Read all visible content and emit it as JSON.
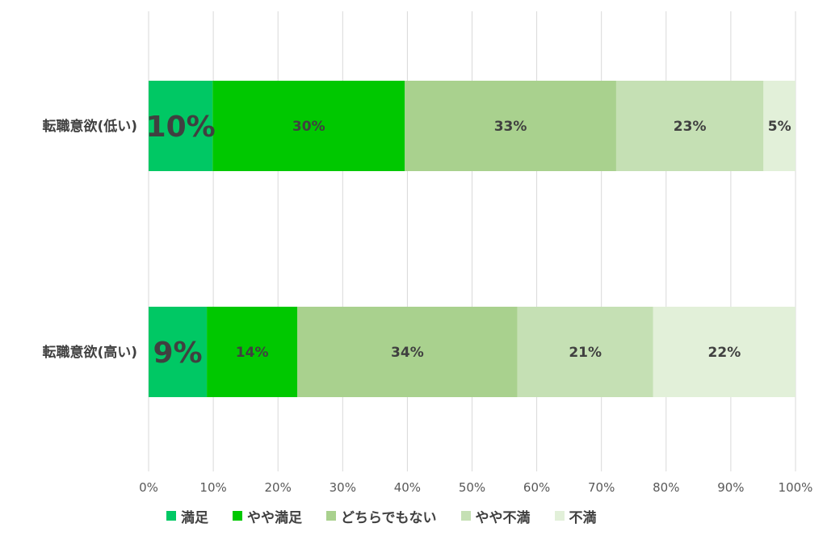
{
  "chart_data": {
    "type": "bar",
    "orientation": "horizontal",
    "stacked": "percent",
    "categories": [
      "転職意欲(低い)",
      "転職意欲(高い)"
    ],
    "series": [
      {
        "name": "満足",
        "color": "#00c864",
        "values": [
          10,
          9
        ],
        "labels": [
          "10%",
          "9%"
        ]
      },
      {
        "name": "やや満足",
        "color": "#00c800",
        "values": [
          30,
          14
        ],
        "labels": [
          "30%",
          "14%"
        ]
      },
      {
        "name": "どちらでもない",
        "color": "#a9d18e",
        "values": [
          33,
          34
        ],
        "labels": [
          "33%",
          "34%"
        ]
      },
      {
        "name": "やや不満",
        "color": "#c5e0b4",
        "values": [
          23,
          21
        ],
        "labels": [
          "23%",
          "21%"
        ]
      },
      {
        "name": "不満",
        "color": "#e2f0d9",
        "values": [
          5,
          22
        ],
        "labels": [
          "5%",
          "22%"
        ]
      }
    ],
    "x_ticks": [
      "0%",
      "10%",
      "20%",
      "30%",
      "40%",
      "50%",
      "60%",
      "70%",
      "80%",
      "90%",
      "100%"
    ],
    "xlim": [
      0,
      100
    ],
    "grid": true,
    "legend_position": "bottom",
    "title": "",
    "xlabel": "",
    "ylabel": ""
  }
}
